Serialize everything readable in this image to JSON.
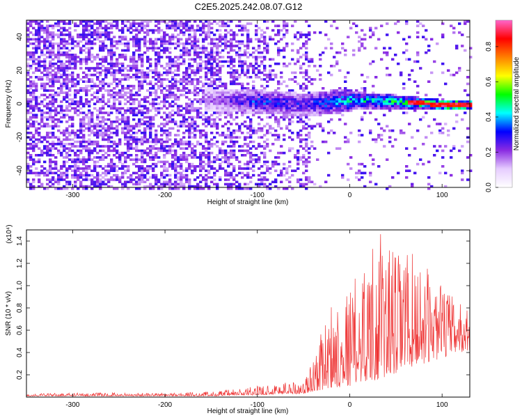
{
  "title": "C2E5.2025.242.08.07.G12",
  "chart_data": [
    {
      "type": "heatmap",
      "xlabel": "Height of straight line (km)",
      "ylabel": "Frequency (Hz)",
      "xlim": [
        -350,
        130
      ],
      "ylim": [
        -50,
        50
      ],
      "xticks": [
        -300,
        -200,
        -100,
        0,
        100
      ],
      "yticks": [
        -40,
        -20,
        0,
        20,
        40
      ],
      "colorbar": {
        "label": "Normalized spectral amplitude",
        "range": [
          0,
          0.95
        ],
        "ticks": [
          0.0,
          0.2,
          0.4,
          0.6,
          0.8
        ],
        "tick_labels": [
          "0.0",
          "0.2",
          "0.4",
          "0.6",
          "0.8"
        ],
        "colormap": [
          "#ffffff",
          "#e6ccff",
          "#8a2be2",
          "#0000ff",
          "#00ffff",
          "#00ff00",
          "#ffff00",
          "#ff8000",
          "#ff0000",
          "#ff66cc"
        ]
      },
      "ridge": {
        "description_points_x_km": [
          -150,
          -100,
          -50,
          0,
          50,
          100,
          130
        ],
        "frequency_hz": [
          3,
          2,
          0,
          3,
          2,
          0,
          0
        ],
        "amplitude": [
          0.2,
          0.35,
          0.3,
          0.45,
          0.5,
          0.7,
          0.85
        ]
      }
    },
    {
      "type": "line",
      "xlabel": "Height of straight line (km)",
      "ylabel": "SNR (10 * v/v)",
      "scale_label": "(x10⁴)",
      "xlim": [
        -350,
        130
      ],
      "ylim": [
        0,
        1.5
      ],
      "xticks": [
        -300,
        -200,
        -100,
        0,
        100
      ],
      "yticks": [
        0.2,
        0.4,
        0.6,
        0.8,
        1.0,
        1.2,
        1.4
      ],
      "ytick_labels": [
        "0.2",
        "0.4",
        "0.6",
        "0.8",
        "1.0",
        "1.2",
        "1.4"
      ],
      "line_color": "#ee3333",
      "envelope": {
        "x": [
          -350,
          -300,
          -200,
          -150,
          -100,
          -70,
          -50,
          -40,
          -20,
          0,
          20,
          30,
          50,
          60,
          80,
          100,
          120,
          130
        ],
        "upper": [
          0.03,
          0.04,
          0.04,
          0.05,
          0.1,
          0.15,
          0.15,
          0.35,
          0.85,
          1.0,
          1.3,
          1.5,
          1.3,
          1.35,
          1.2,
          1.0,
          0.85,
          0.8
        ],
        "baseline": [
          0.01,
          0.01,
          0.01,
          0.01,
          0.02,
          0.03,
          0.03,
          0.05,
          0.08,
          0.1,
          0.15,
          0.15,
          0.2,
          0.25,
          0.3,
          0.35,
          0.4,
          0.42
        ]
      }
    }
  ]
}
